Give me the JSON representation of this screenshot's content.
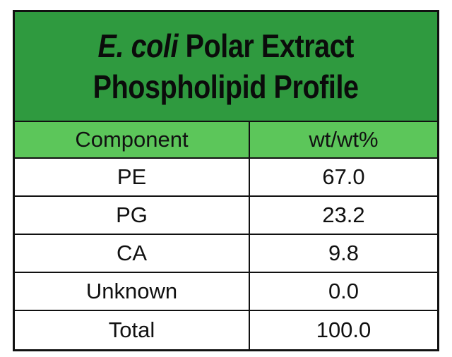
{
  "header": {
    "title_emphasis": "E. coli",
    "title_rest": "Polar Extract",
    "title_line2": "Phospholipid Profile"
  },
  "table": {
    "columns": [
      "Component",
      "wt/wt%"
    ],
    "rows": [
      [
        "PE",
        "67.0"
      ],
      [
        "PG",
        "23.2"
      ],
      [
        "CA",
        "9.8"
      ],
      [
        "Unknown",
        "0.0"
      ],
      [
        "Total",
        "100.0"
      ]
    ]
  }
}
